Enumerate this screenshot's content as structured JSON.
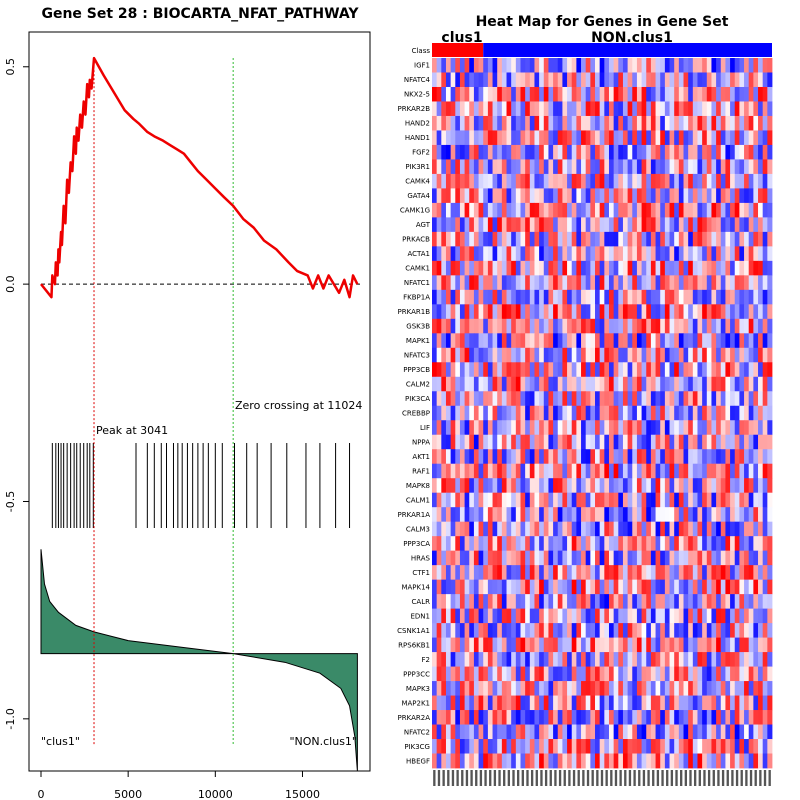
{
  "chart_data": [
    {
      "type": "line",
      "name": "running-enrichment-score",
      "title": "Gene Set  28 : BIOCARTA_NFAT_PATHWAY",
      "xlim": [
        0,
        18300
      ],
      "ylim": [
        -1.12,
        0.58
      ],
      "x_ticks": [
        0,
        5000,
        10000,
        15000
      ],
      "x_tick_labels": [
        "0",
        "5000",
        "10000",
        "15000"
      ],
      "y_ticks": [
        0.5,
        0.0,
        -0.5,
        -1.0
      ],
      "y_tick_labels": [
        "0.5",
        "0.0",
        "-0.5",
        "-1.0"
      ],
      "series": [
        {
          "name": "running enrichment score",
          "color": "#ee0000",
          "x": [
            0,
            600,
            650,
            800,
            850,
            950,
            1000,
            1050,
            1150,
            1200,
            1300,
            1400,
            1500,
            1600,
            1700,
            1800,
            1900,
            2000,
            2050,
            2150,
            2250,
            2350,
            2450,
            2550,
            2650,
            2750,
            2800,
            2900,
            3000,
            3041,
            3600,
            4200,
            4800,
            5300,
            5600,
            6100,
            6500,
            7000,
            7400,
            7800,
            8200,
            8600,
            9000,
            9500,
            10000,
            10500,
            11024,
            11600,
            12200,
            12800,
            13500,
            14200,
            14700,
            15300,
            15600,
            15900,
            16200,
            16500,
            16800,
            17100,
            17400,
            17700,
            17900,
            18150
          ],
          "y": [
            0.0,
            -0.03,
            0.02,
            0.0,
            0.05,
            0.02,
            0.08,
            0.05,
            0.12,
            0.09,
            0.18,
            0.14,
            0.24,
            0.21,
            0.28,
            0.26,
            0.34,
            0.3,
            0.36,
            0.33,
            0.39,
            0.36,
            0.42,
            0.39,
            0.46,
            0.43,
            0.47,
            0.45,
            0.5,
            0.52,
            0.48,
            0.44,
            0.4,
            0.38,
            0.37,
            0.35,
            0.34,
            0.33,
            0.32,
            0.31,
            0.3,
            0.28,
            0.26,
            0.24,
            0.22,
            0.2,
            0.18,
            0.15,
            0.13,
            0.1,
            0.08,
            0.05,
            0.03,
            0.02,
            -0.01,
            0.02,
            -0.01,
            0.02,
            0.0,
            -0.02,
            0.01,
            -0.03,
            0.02,
            0.0
          ]
        }
      ],
      "reference_line_y": 0.0,
      "peak": {
        "position": 3041,
        "label": "Peak at 3041"
      },
      "zero_crossing": {
        "position": 11024,
        "label": "Zero crossing at 11024"
      },
      "gene_hit_positions": [
        650,
        850,
        1000,
        1150,
        1300,
        1500,
        1700,
        1900,
        2050,
        2250,
        2450,
        2650,
        2800,
        3000,
        5450,
        6100,
        6500,
        6900,
        7200,
        7600,
        7850,
        8100,
        8400,
        8700,
        9000,
        9300,
        9600,
        10000,
        10400,
        11100,
        11800,
        12400,
        13200,
        14100,
        15200,
        16000,
        16900,
        17700
      ],
      "ranked_metric": {
        "name": "ranked list metric",
        "color": "#3a8a68",
        "x": [
          0,
          200,
          500,
          1000,
          2000,
          3041,
          5000,
          8000,
          11024,
          14000,
          16000,
          17200,
          17700,
          18000,
          18150
        ],
        "y": [
          -0.61,
          -0.69,
          -0.73,
          -0.755,
          -0.785,
          -0.8,
          -0.82,
          -0.835,
          -0.85,
          -0.87,
          -0.895,
          -0.93,
          -0.97,
          -1.04,
          -1.12
        ]
      },
      "baseline_y": -0.85,
      "left_label": "\"clus1\"",
      "right_label": "\"NON.clus1\""
    },
    {
      "type": "heatmap",
      "name": "heat-map-for-genes-in-gene-set",
      "title": "Heat Map for Genes in Gene Set",
      "class_row_label": "Class",
      "groups": [
        {
          "name": "clus1",
          "color": "#ff0000",
          "samples": 11
        },
        {
          "name": "NON.clus1",
          "color": "#0000ff",
          "samples": 62
        }
      ],
      "genes": [
        "IGF1",
        "NFATC4",
        "NKX2-5",
        "PRKAR2B",
        "HAND2",
        "HAND1",
        "FGF2",
        "PIK3R1",
        "CAMK4",
        "GATA4",
        "CAMK1G",
        "AGT",
        "PRKACB",
        "ACTA1",
        "CAMK1",
        "NFATC1",
        "FKBP1A",
        "PRKAR1B",
        "GSK3B",
        "MAPK1",
        "NFATC3",
        "PPP3CB",
        "CALM2",
        "PIK3CA",
        "CREBBP",
        "LIF",
        "NPPA",
        "AKT1",
        "RAF1",
        "MAPK8",
        "CALM1",
        "PRKAR1A",
        "CALM3",
        "PPP3CA",
        "HRAS",
        "CTF1",
        "MAPK14",
        "CALR",
        "EDN1",
        "CSNK1A1",
        "RPS6KB1",
        "F2",
        "PPP3CC",
        "MAPK3",
        "MAP2K1",
        "PRKAR2A",
        "NFATC2",
        "PIK3CG",
        "HBEGF"
      ],
      "colors": {
        "high": "#ff0000",
        "mid": "#ffffff",
        "low": "#0000ff"
      }
    }
  ]
}
